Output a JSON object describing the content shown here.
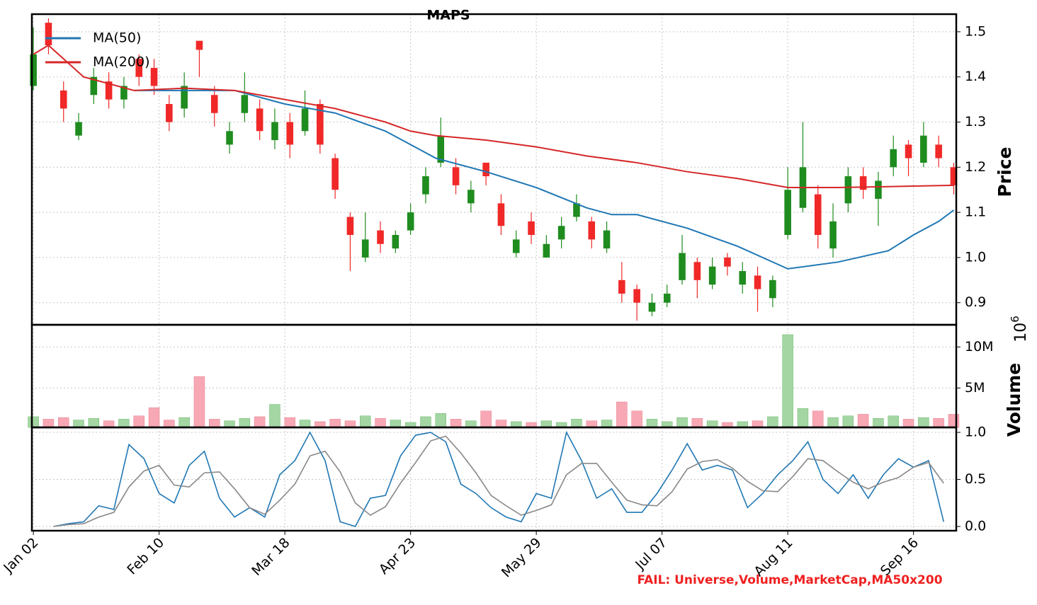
{
  "chart_data": [
    {
      "type": "candlestick",
      "title": "MAPS",
      "ylabel": "Price",
      "annotation": "FAIL: Universe,Volume,MarketCap,MA50x200",
      "x": [
        0,
        3,
        6,
        9,
        12,
        15,
        18,
        21,
        24,
        27,
        30,
        33,
        36,
        39,
        42,
        45,
        48,
        51,
        54,
        57,
        60,
        63,
        66,
        69,
        72,
        75,
        78,
        81,
        84,
        87,
        90,
        93,
        96,
        99,
        102,
        105,
        108,
        111,
        114,
        117,
        120,
        123,
        126,
        129,
        132,
        135,
        138,
        141,
        144,
        147,
        150,
        153,
        156,
        159,
        162,
        165,
        168,
        171,
        174,
        177,
        180,
        183
      ],
      "open": [
        1.38,
        1.52,
        1.37,
        1.27,
        1.36,
        1.39,
        1.35,
        1.44,
        1.42,
        1.34,
        1.33,
        1.48,
        1.36,
        1.25,
        1.32,
        1.33,
        1.26,
        1.3,
        1.28,
        1.34,
        1.22,
        1.09,
        1.0,
        1.06,
        1.02,
        1.06,
        1.14,
        1.21,
        1.2,
        1.12,
        1.21,
        1.12,
        1.01,
        1.08,
        1.0,
        1.04,
        1.09,
        1.08,
        1.02,
        0.95,
        0.93,
        0.88,
        0.9,
        0.95,
        0.99,
        0.94,
        1.0,
        0.94,
        0.96,
        0.91,
        1.05,
        1.11,
        1.14,
        1.02,
        1.12,
        1.18,
        1.13,
        1.2,
        1.25,
        1.21,
        1.25,
        1.2
      ],
      "high": [
        1.51,
        1.53,
        1.39,
        1.32,
        1.42,
        1.41,
        1.4,
        1.45,
        1.44,
        1.36,
        1.41,
        1.48,
        1.38,
        1.3,
        1.41,
        1.35,
        1.33,
        1.32,
        1.37,
        1.35,
        1.23,
        1.1,
        1.1,
        1.08,
        1.06,
        1.12,
        1.2,
        1.31,
        1.22,
        1.17,
        1.21,
        1.14,
        1.06,
        1.1,
        1.05,
        1.09,
        1.14,
        1.09,
        1.08,
        0.99,
        0.94,
        0.92,
        0.94,
        1.05,
        1.0,
        1.0,
        1.01,
        0.99,
        0.98,
        0.96,
        1.2,
        1.3,
        1.16,
        1.12,
        1.2,
        1.2,
        1.19,
        1.27,
        1.26,
        1.3,
        1.27,
        1.21
      ],
      "low": [
        1.37,
        1.45,
        1.3,
        1.26,
        1.34,
        1.33,
        1.33,
        1.38,
        1.36,
        1.28,
        1.31,
        1.4,
        1.29,
        1.23,
        1.3,
        1.26,
        1.24,
        1.22,
        1.27,
        1.23,
        1.13,
        0.97,
        0.99,
        1.01,
        1.01,
        1.05,
        1.12,
        1.2,
        1.14,
        1.1,
        1.16,
        1.05,
        1.0,
        1.03,
        1.0,
        1.02,
        1.08,
        1.02,
        1.01,
        0.9,
        0.86,
        0.87,
        0.89,
        0.94,
        0.91,
        0.93,
        0.96,
        0.92,
        0.88,
        0.89,
        1.04,
        1.1,
        1.02,
        1.0,
        1.1,
        1.13,
        1.07,
        1.18,
        1.18,
        1.2,
        1.2,
        1.14
      ],
      "close": [
        1.45,
        1.47,
        1.33,
        1.3,
        1.4,
        1.35,
        1.38,
        1.4,
        1.38,
        1.3,
        1.38,
        1.46,
        1.32,
        1.28,
        1.36,
        1.28,
        1.3,
        1.25,
        1.33,
        1.25,
        1.15,
        1.05,
        1.04,
        1.03,
        1.05,
        1.1,
        1.18,
        1.27,
        1.16,
        1.15,
        1.18,
        1.07,
        1.04,
        1.05,
        1.03,
        1.07,
        1.12,
        1.04,
        1.06,
        0.92,
        0.9,
        0.9,
        0.92,
        1.01,
        0.95,
        0.98,
        0.98,
        0.97,
        0.93,
        0.95,
        1.15,
        1.2,
        1.05,
        1.08,
        1.18,
        1.15,
        1.17,
        1.24,
        1.22,
        1.27,
        1.22,
        1.16
      ],
      "up_color": "#1e8c1e",
      "down_color": "#f02828",
      "series": [
        {
          "name": "MA(50)",
          "color": "#1f77b4",
          "x": [
            20,
            30,
            40,
            50,
            55,
            60,
            70,
            75,
            80,
            90,
            100,
            110,
            115,
            120,
            130,
            140,
            150,
            160,
            170,
            175,
            180,
            183
          ],
          "values": [
            1.37,
            1.37,
            1.37,
            1.34,
            1.33,
            1.32,
            1.28,
            1.25,
            1.22,
            1.19,
            1.155,
            1.11,
            1.095,
            1.095,
            1.065,
            1.025,
            0.975,
            0.99,
            1.015,
            1.05,
            1.08,
            1.105
          ]
        },
        {
          "name": "MA(200)",
          "color": "#d62728",
          "x": [
            0,
            3,
            10,
            20,
            30,
            40,
            50,
            55,
            60,
            70,
            75,
            80,
            90,
            100,
            110,
            120,
            130,
            140,
            150,
            160,
            170,
            183
          ],
          "values": [
            1.45,
            1.47,
            1.4,
            1.37,
            1.375,
            1.37,
            1.35,
            1.34,
            1.33,
            1.3,
            1.28,
            1.27,
            1.26,
            1.245,
            1.225,
            1.21,
            1.19,
            1.175,
            1.155,
            1.155,
            1.157,
            1.16
          ]
        }
      ],
      "xlim": [
        -0.3,
        183.5
      ],
      "ylim": [
        0.851,
        1.539
      ],
      "yticks": [
        0.9,
        {
          "value": 1,
          "label": "1.0"
        },
        1.1,
        1.2,
        1.3,
        1.4,
        1.5
      ],
      "grid": true,
      "legend": "upper left"
    },
    {
      "type": "bar",
      "ylabel": "Volume",
      "offset_label": {
        "base": "10",
        "exponent": "6"
      },
      "x": [
        0,
        3,
        6,
        9,
        12,
        15,
        18,
        21,
        24,
        27,
        30,
        33,
        36,
        39,
        42,
        45,
        48,
        51,
        54,
        57,
        60,
        63,
        66,
        69,
        72,
        75,
        78,
        81,
        84,
        87,
        90,
        93,
        96,
        99,
        102,
        105,
        108,
        111,
        114,
        117,
        120,
        123,
        126,
        129,
        132,
        135,
        138,
        141,
        144,
        147,
        150,
        153,
        156,
        159,
        162,
        165,
        168,
        171,
        174,
        177,
        180,
        183
      ],
      "values": [
        1.5,
        1.2,
        1.4,
        1.1,
        1.3,
        1.0,
        1.2,
        1.6,
        2.6,
        1.1,
        1.4,
        6.4,
        1.2,
        1.0,
        1.3,
        1.5,
        3.0,
        1.4,
        1.1,
        0.9,
        1.2,
        1.0,
        1.6,
        1.3,
        1.1,
        0.8,
        1.5,
        1.9,
        1.2,
        1.0,
        2.2,
        1.1,
        0.9,
        0.8,
        1.0,
        0.8,
        1.2,
        1.0,
        1.1,
        3.3,
        2.2,
        1.2,
        0.9,
        1.4,
        1.3,
        1.0,
        0.8,
        0.9,
        1.0,
        1.5,
        11.5,
        2.5,
        2.2,
        1.4,
        1.6,
        1.8,
        1.3,
        1.6,
        1.2,
        1.4,
        1.3,
        1.8
      ],
      "up_color": "#a3d6a3",
      "down_color": "#f7a8b4",
      "xlim": [
        -0.3,
        183.5
      ],
      "ylim": [
        0.2,
        12.7
      ],
      "yticks": [
        {
          "value": 5,
          "label": "5M"
        },
        {
          "value": 10,
          "label": "10M"
        }
      ],
      "grid": true
    },
    {
      "type": "line",
      "x": [
        4,
        7,
        10,
        13,
        16,
        19,
        22,
        25,
        28,
        31,
        34,
        37,
        40,
        43,
        46,
        49,
        52,
        55,
        58,
        61,
        64,
        67,
        70,
        73,
        76,
        79,
        82,
        85,
        88,
        91,
        94,
        97,
        100,
        103,
        106,
        109,
        112,
        115,
        118,
        121,
        124,
        127,
        130,
        133,
        136,
        139,
        142,
        145,
        148,
        151,
        154,
        157,
        160,
        163,
        166,
        169,
        172,
        175,
        178,
        181
      ],
      "series": [
        {
          "color": "#1f77b4",
          "values": [
            0,
            0.03,
            0.05,
            0.22,
            0.18,
            0.87,
            0.72,
            0.35,
            0.25,
            0.65,
            0.8,
            0.3,
            0.1,
            0.2,
            0.1,
            0.55,
            0.7,
            1.0,
            0.7,
            0.05,
            0.0,
            0.3,
            0.33,
            0.75,
            0.97,
            1.0,
            0.9,
            0.45,
            0.35,
            0.2,
            0.1,
            0.05,
            0.35,
            0.3,
            1.0,
            0.7,
            0.3,
            0.4,
            0.15,
            0.15,
            0.35,
            0.6,
            0.88,
            0.6,
            0.65,
            0.6,
            0.2,
            0.35,
            0.55,
            0.7,
            0.9,
            0.5,
            0.35,
            0.55,
            0.3,
            0.55,
            0.72,
            0.63,
            0.7,
            0.05
          ]
        },
        {
          "color": "#888888",
          "values": [
            0,
            0.02,
            0.03,
            0.1,
            0.15,
            0.42,
            0.59,
            0.65,
            0.44,
            0.42,
            0.57,
            0.58,
            0.4,
            0.2,
            0.13,
            0.28,
            0.45,
            0.75,
            0.8,
            0.58,
            0.25,
            0.12,
            0.21,
            0.46,
            0.68,
            0.91,
            0.96,
            0.78,
            0.57,
            0.33,
            0.22,
            0.12,
            0.17,
            0.23,
            0.55,
            0.67,
            0.67,
            0.47,
            0.28,
            0.23,
            0.22,
            0.37,
            0.61,
            0.69,
            0.71,
            0.62,
            0.48,
            0.38,
            0.37,
            0.53,
            0.72,
            0.7,
            0.58,
            0.47,
            0.4,
            0.47,
            0.52,
            0.63,
            0.68,
            0.46
          ]
        }
      ],
      "xlim": [
        -0.3,
        183.5
      ],
      "ylim": [
        -0.045,
        1.053
      ],
      "yticks": [
        {
          "value": 0,
          "label": "0.0"
        },
        0.5,
        {
          "value": 1,
          "label": "1.0"
        }
      ],
      "xticks": [
        {
          "value": 0,
          "label": "Jan 02"
        },
        {
          "value": 25,
          "label": "Feb 10"
        },
        {
          "value": 50,
          "label": "Mar 18"
        },
        {
          "value": 75,
          "label": "Apr 23"
        },
        {
          "value": 100,
          "label": "May 29"
        },
        {
          "value": 125,
          "label": "Jul 07"
        },
        {
          "value": 150,
          "label": "Aug 11"
        },
        {
          "value": 175,
          "label": "Sep 16"
        }
      ],
      "grid": true
    }
  ]
}
